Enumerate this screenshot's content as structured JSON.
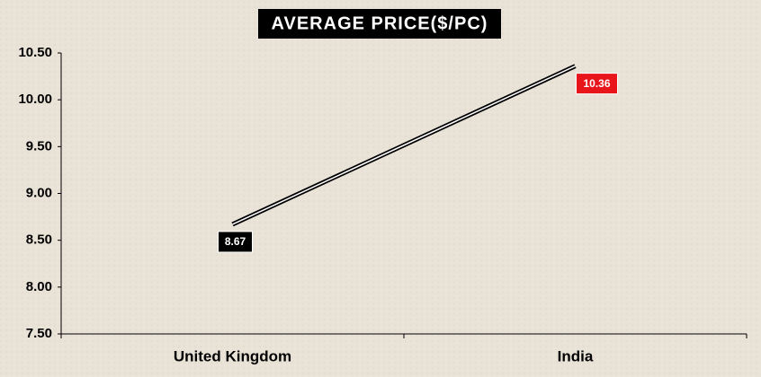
{
  "chart_data": {
    "type": "line",
    "title": "AVERAGE PRICE($/PC)",
    "categories": [
      "United Kingdom",
      "India"
    ],
    "values": [
      8.67,
      10.36
    ],
    "label_colors": [
      "#000000",
      "#e8161b"
    ],
    "color": "#000000",
    "ylim": [
      7.5,
      10.5
    ],
    "yticks": [
      {
        "value": 7.5,
        "label": "7.50"
      },
      {
        "value": 8,
        "label": "8.00"
      },
      {
        "value": 8.5,
        "label": "8.50"
      },
      {
        "value": 9,
        "label": "9.00"
      },
      {
        "value": 9.5,
        "label": "9.50"
      },
      {
        "value": 10,
        "label": "10.00"
      },
      {
        "value": 10.5,
        "label": "10.50"
      }
    ],
    "grid": false
  }
}
